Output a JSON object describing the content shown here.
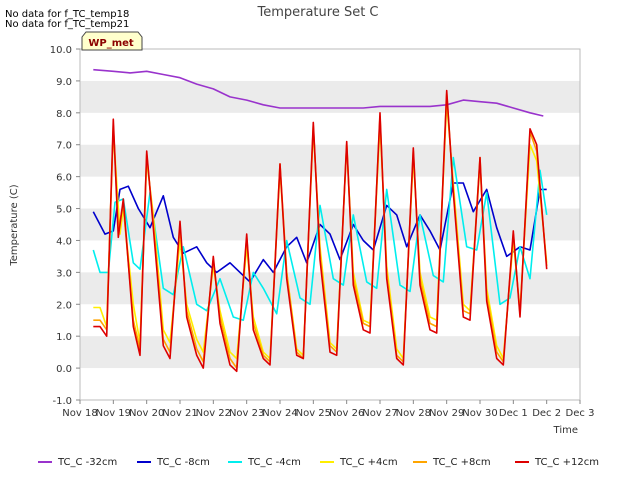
{
  "notes": [
    "No data for f_TC_temp18",
    "No data for f_TC_temp21"
  ],
  "badge": "WP_met",
  "colors": {
    "background": "#ffffff",
    "band": "#ebebeb",
    "badge_fill": "#ffffcc",
    "badge_text": "#8b0000"
  },
  "chart_data": {
    "type": "line",
    "title": "Temperature Set C",
    "xlabel": "Time",
    "ylabel": "Temperature (C)",
    "xlim": [
      0,
      15
    ],
    "ylim": [
      -1.0,
      10.0
    ],
    "x_ticks": [
      0,
      1,
      2,
      3,
      4,
      5,
      6,
      7,
      8,
      9,
      10,
      11,
      12,
      13,
      14,
      15
    ],
    "x_tick_labels": [
      "Nov 18",
      "Nov 19",
      "Nov 20",
      "Nov 21",
      "Nov 22",
      "Nov 23",
      "Nov 24",
      "Nov 25",
      "Nov 26",
      "Nov 27",
      "Nov 28",
      "Nov 29",
      "Nov 30",
      "Dec 1",
      "Dec 2",
      "Dec 3"
    ],
    "y_ticks": [
      -1.0,
      0.0,
      1.0,
      2.0,
      3.0,
      4.0,
      5.0,
      6.0,
      7.0,
      8.0,
      9.0,
      10.0
    ],
    "y_tick_labels": [
      "-1.0",
      "0.0",
      "1.0",
      "2.0",
      "3.0",
      "4.0",
      "5.0",
      "6.0",
      "7.0",
      "8.0",
      "9.0",
      "10.0"
    ],
    "grid": "horizontal bands",
    "legend": "bottom",
    "series": [
      {
        "name": "TC_C -32cm",
        "color": "#9933cc",
        "x": [
          0.4,
          1,
          1.5,
          2,
          2.5,
          3,
          3.5,
          4,
          4.5,
          5,
          5.5,
          6,
          6.5,
          7,
          7.5,
          8,
          8.5,
          9,
          9.5,
          10,
          10.5,
          11,
          11.5,
          12,
          12.5,
          13,
          13.5,
          13.9
        ],
        "y": [
          9.35,
          9.3,
          9.25,
          9.3,
          9.2,
          9.1,
          8.9,
          8.75,
          8.5,
          8.4,
          8.25,
          8.15,
          8.15,
          8.15,
          8.15,
          8.15,
          8.15,
          8.2,
          8.2,
          8.2,
          8.2,
          8.25,
          8.4,
          8.35,
          8.3,
          8.15,
          8.0,
          7.9
        ]
      },
      {
        "name": "TC_C -8cm",
        "color": "#0000cc",
        "x": [
          0.4,
          0.75,
          1.0,
          1.2,
          1.45,
          1.75,
          2.1,
          2.5,
          2.8,
          3.1,
          3.5,
          3.8,
          4.1,
          4.5,
          4.8,
          5.1,
          5.5,
          5.8,
          6.2,
          6.5,
          6.8,
          7.2,
          7.5,
          7.8,
          8.2,
          8.5,
          8.8,
          9.2,
          9.5,
          9.8,
          10.2,
          10.5,
          10.8,
          11.2,
          11.5,
          11.8,
          12.2,
          12.5,
          12.8,
          13.2,
          13.5,
          13.8,
          14.0
        ],
        "y": [
          4.9,
          4.2,
          4.3,
          5.6,
          5.7,
          5.0,
          4.4,
          5.4,
          4.1,
          3.6,
          3.8,
          3.3,
          3.0,
          3.3,
          3.0,
          2.7,
          3.4,
          3.0,
          3.8,
          4.1,
          3.3,
          4.5,
          4.2,
          3.4,
          4.5,
          4.0,
          3.7,
          5.1,
          4.8,
          3.8,
          4.8,
          4.3,
          3.7,
          5.8,
          5.8,
          4.9,
          5.6,
          4.4,
          3.5,
          3.8,
          3.7,
          5.6,
          5.6
        ]
      },
      {
        "name": "TC_C -4cm",
        "color": "#00eeee",
        "x": [
          0.4,
          0.6,
          0.85,
          1.05,
          1.3,
          1.6,
          1.8,
          2.1,
          2.5,
          2.8,
          3.1,
          3.5,
          3.8,
          4.2,
          4.6,
          4.9,
          5.2,
          5.5,
          5.9,
          6.2,
          6.6,
          6.9,
          7.2,
          7.6,
          7.9,
          8.2,
          8.6,
          8.9,
          9.2,
          9.6,
          9.9,
          10.2,
          10.6,
          10.9,
          11.2,
          11.6,
          11.9,
          12.2,
          12.6,
          12.9,
          13.2,
          13.5,
          13.8,
          14.0
        ],
        "y": [
          3.7,
          3.0,
          3.0,
          5.2,
          5.3,
          3.3,
          3.1,
          5.5,
          2.5,
          2.3,
          3.8,
          2.0,
          1.8,
          2.8,
          1.6,
          1.5,
          3.0,
          2.5,
          1.7,
          4.0,
          2.2,
          2.0,
          5.1,
          2.8,
          2.6,
          4.8,
          2.7,
          2.5,
          5.6,
          2.6,
          2.4,
          4.8,
          2.9,
          2.7,
          6.6,
          3.8,
          3.7,
          5.5,
          2.0,
          2.2,
          3.8,
          2.8,
          6.2,
          4.8
        ]
      },
      {
        "name": "TC_C +4cm",
        "color": "#ffee00",
        "x": [
          0.4,
          0.6,
          0.8,
          1.0,
          1.2,
          1.3,
          1.6,
          1.8,
          2.0,
          2.2,
          2.5,
          2.7,
          3.0,
          3.2,
          3.5,
          3.7,
          4.0,
          4.2,
          4.5,
          4.7,
          5.0,
          5.2,
          5.5,
          5.7,
          6.0,
          6.2,
          6.5,
          6.7,
          7.0,
          7.2,
          7.5,
          7.7,
          8.0,
          8.2,
          8.5,
          8.7,
          9.0,
          9.2,
          9.5,
          9.7,
          10.0,
          10.2,
          10.5,
          10.7,
          11.0,
          11.2,
          11.5,
          11.7,
          12.0,
          12.2,
          12.5,
          12.7,
          13.0,
          13.2,
          13.5,
          13.7,
          14.0
        ],
        "y": [
          1.9,
          1.9,
          1.3,
          7.5,
          4.2,
          5.0,
          2.0,
          0.8,
          6.5,
          4.8,
          1.2,
          0.8,
          4.0,
          2.0,
          0.9,
          0.5,
          3.2,
          1.8,
          0.5,
          0.3,
          3.8,
          1.6,
          0.5,
          0.3,
          6.2,
          3.0,
          0.6,
          0.4,
          7.5,
          3.8,
          0.8,
          0.6,
          7.0,
          3.0,
          1.5,
          1.4,
          7.6,
          3.2,
          0.6,
          0.3,
          6.6,
          3.0,
          1.6,
          1.5,
          8.3,
          5.8,
          2.0,
          1.8,
          6.4,
          2.5,
          0.7,
          0.3,
          4.0,
          1.8,
          7.0,
          6.5,
          3.3
        ]
      },
      {
        "name": "TC_C +8cm",
        "color": "#ffa500",
        "x": [
          0.4,
          0.6,
          0.8,
          1.0,
          1.15,
          1.3,
          1.6,
          1.8,
          2.0,
          2.2,
          2.5,
          2.7,
          3.0,
          3.2,
          3.5,
          3.7,
          4.0,
          4.2,
          4.5,
          4.7,
          5.0,
          5.2,
          5.5,
          5.7,
          6.0,
          6.2,
          6.5,
          6.7,
          7.0,
          7.2,
          7.5,
          7.7,
          8.0,
          8.2,
          8.5,
          8.7,
          9.0,
          9.2,
          9.5,
          9.7,
          10.0,
          10.2,
          10.5,
          10.7,
          11.0,
          11.2,
          11.5,
          11.7,
          12.0,
          12.2,
          12.5,
          12.7,
          13.0,
          13.2,
          13.5,
          13.7,
          14.0
        ],
        "y": [
          1.5,
          1.5,
          1.2,
          7.6,
          4.4,
          5.1,
          1.5,
          0.6,
          6.7,
          4.6,
          0.9,
          0.5,
          4.4,
          1.8,
          0.6,
          0.2,
          3.4,
          1.6,
          0.3,
          0.0,
          4.1,
          1.4,
          0.4,
          0.2,
          6.4,
          3.0,
          0.5,
          0.3,
          7.6,
          3.6,
          0.7,
          0.5,
          7.0,
          2.8,
          1.4,
          1.3,
          7.9,
          3.0,
          0.4,
          0.2,
          6.8,
          2.8,
          1.4,
          1.3,
          8.6,
          5.6,
          1.8,
          1.7,
          6.6,
          2.3,
          0.5,
          0.2,
          4.2,
          1.7,
          7.4,
          6.8,
          3.2
        ]
      },
      {
        "name": "TC_C +12cm",
        "color": "#dd0000",
        "x": [
          0.4,
          0.6,
          0.8,
          1.0,
          1.15,
          1.3,
          1.6,
          1.8,
          2.0,
          2.2,
          2.5,
          2.7,
          3.0,
          3.2,
          3.5,
          3.7,
          4.0,
          4.2,
          4.5,
          4.7,
          5.0,
          5.2,
          5.5,
          5.7,
          6.0,
          6.2,
          6.5,
          6.7,
          7.0,
          7.2,
          7.5,
          7.7,
          8.0,
          8.2,
          8.5,
          8.7,
          9.0,
          9.2,
          9.5,
          9.7,
          10.0,
          10.2,
          10.5,
          10.7,
          11.0,
          11.2,
          11.5,
          11.7,
          12.0,
          12.2,
          12.5,
          12.7,
          13.0,
          13.2,
          13.5,
          13.7,
          14.0
        ],
        "y": [
          1.3,
          1.3,
          1.0,
          7.8,
          4.1,
          5.3,
          1.3,
          0.4,
          6.8,
          4.4,
          0.7,
          0.3,
          4.6,
          1.6,
          0.4,
          0.0,
          3.5,
          1.4,
          0.1,
          -0.1,
          4.2,
          1.2,
          0.3,
          0.1,
          6.4,
          2.8,
          0.4,
          0.3,
          7.7,
          3.4,
          0.5,
          0.4,
          7.1,
          2.6,
          1.2,
          1.1,
          8.0,
          2.8,
          0.3,
          0.1,
          6.9,
          2.6,
          1.2,
          1.1,
          8.7,
          5.5,
          1.6,
          1.5,
          6.6,
          2.1,
          0.3,
          0.1,
          4.3,
          1.6,
          7.5,
          7.0,
          3.1
        ]
      }
    ]
  }
}
